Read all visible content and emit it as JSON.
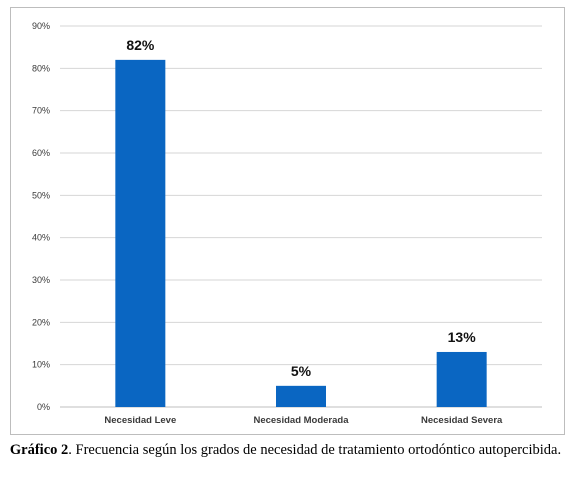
{
  "chart_data": {
    "type": "bar",
    "title": "",
    "xlabel": "",
    "ylabel": "",
    "categories": [
      "Necesidad Leve",
      "Necesidad Moderada",
      "Necesidad Severa"
    ],
    "values": [
      82,
      5,
      13
    ],
    "data_labels": [
      "82%",
      "5%",
      "13%"
    ],
    "ylim": [
      0,
      90
    ],
    "yticks": [
      0,
      10,
      20,
      30,
      40,
      50,
      60,
      70,
      80,
      90
    ],
    "ytick_labels": [
      "0%",
      "10%",
      "20%",
      "30%",
      "40%",
      "50%",
      "60%",
      "70%",
      "80%",
      "90%"
    ],
    "bar_color": "#0a66c2",
    "grid": true,
    "legend": "none"
  },
  "caption": {
    "label": "Gráfico 2",
    "text": ". Frecuencia según los grados de necesidad de tratamiento ortodóntico autopercibida."
  }
}
